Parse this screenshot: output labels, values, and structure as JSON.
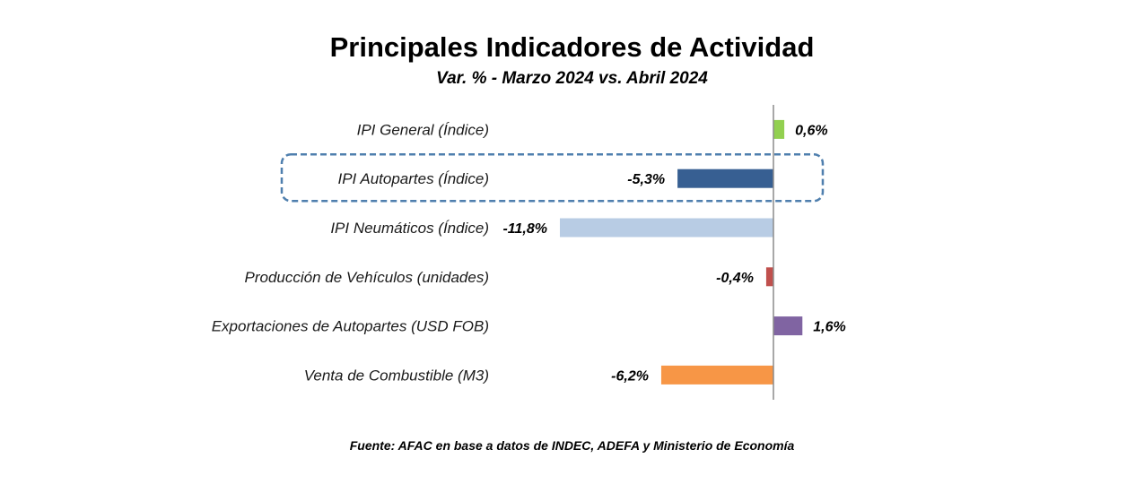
{
  "chart_data": {
    "type": "bar",
    "orientation": "horizontal",
    "title": "Principales Indicadores de Actividad",
    "subtitle": "Var. % - Marzo 2024 vs. Abril 2024",
    "categories": [
      "IPI General (Índice)",
      "IPI Autopartes (Índice)",
      "IPI Neumáticos (Índice)",
      "Producción de Vehículos (unidades)",
      "Exportaciones de Autopartes (USD FOB)",
      "Venta de Combustible (M3)"
    ],
    "values": [
      0.6,
      -5.3,
      -11.8,
      -0.4,
      1.6,
      -6.2
    ],
    "value_labels": [
      "0,6%",
      "-5,3%",
      "-11,8%",
      "-0,4%",
      "1,6%",
      "-6,2%"
    ],
    "colors": [
      "#92d050",
      "#375f92",
      "#b8cce4",
      "#c0504d",
      "#8064a2",
      "#f79646"
    ],
    "highlighted_category": "IPI Autopartes (Índice)",
    "highlight_color": "#4f7fae",
    "axis_color": "#8c8c8c",
    "grid": false,
    "legend": "none",
    "xlim": [
      -12,
      2
    ]
  },
  "footer": {
    "source": "Fuente: AFAC en base a datos de INDEC, ADEFA y Ministerio de Economía"
  }
}
